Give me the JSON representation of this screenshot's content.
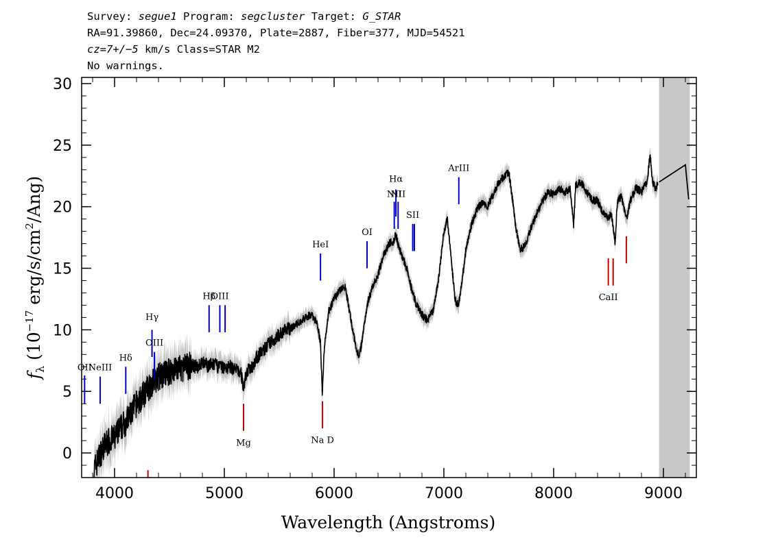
{
  "header": {
    "survey_label": "Survey:",
    "survey": "segue1",
    "program_label": "Program:",
    "program": "segcluster",
    "target_label": "Target:",
    "target": "G_STAR",
    "line2": "RA=91.39860, Dec=24.09370, Plate=2887, Fiber=377, MJD=54521",
    "cz_label": "cz=7+/−5",
    "cz_rest": " km/s Class=STAR M2",
    "line4": "No warnings."
  },
  "chart_data": {
    "type": "line",
    "xlabel": "Wavelength (Angstroms)",
    "ylabel_prefix": "f",
    "ylabel_sub": "λ",
    "ylabel_text": " (10",
    "ylabel_exp": "−17",
    "ylabel_tail": " erg/s/cm",
    "ylabel_exp2": "2",
    "ylabel_end": "/Ang)",
    "xlim": [
      3700,
      9300
    ],
    "ylim": [
      -2,
      30.5
    ],
    "xticks": [
      4000,
      5000,
      6000,
      7000,
      8000,
      9000
    ],
    "yticks": [
      0,
      5,
      10,
      15,
      20,
      25,
      30
    ],
    "masked_region": [
      8960,
      9240
    ],
    "colors": {
      "spectrum": "#000000",
      "error_band": "#c0c0c0",
      "emission": "#0000cc",
      "absorption": "#cc0000",
      "mask": "#c8c8c8"
    },
    "series": [
      {
        "x": [
          3810,
          3850,
          3900,
          3950,
          4000,
          4050,
          4100,
          4150,
          4200,
          4250,
          4300,
          4350,
          4400,
          4450,
          4500,
          4550,
          4600,
          4650,
          4700,
          4750,
          4800,
          4850,
          4900,
          4950,
          5000,
          5050,
          5100,
          5150,
          5175,
          5200,
          5250,
          5300,
          5350,
          5400,
          5450,
          5500,
          5550,
          5600,
          5650,
          5700,
          5750,
          5800,
          5850,
          5875,
          5893,
          5910,
          5950,
          6000,
          6050,
          6100,
          6150,
          6200,
          6230,
          6260,
          6300,
          6350,
          6400,
          6450,
          6500,
          6540,
          6563,
          6580,
          6620,
          6660,
          6700,
          6750,
          6800,
          6850,
          6900,
          6950,
          7000,
          7030,
          7050,
          7070,
          7100,
          7130,
          7160,
          7200,
          7250,
          7300,
          7350,
          7400,
          7450,
          7500,
          7550,
          7590,
          7620,
          7660,
          7700,
          7750,
          7800,
          7850,
          7900,
          7950,
          8000,
          8050,
          8100,
          8150,
          8183,
          8200,
          8250,
          8300,
          8350,
          8400,
          8450,
          8498,
          8520,
          8542,
          8560,
          8580,
          8620,
          8662,
          8700,
          8750,
          8800,
          8850,
          8880,
          8900,
          8930,
          8950
        ],
        "y": [
          -1.5,
          -0.5,
          0.5,
          1.0,
          1.2,
          2.0,
          2.5,
          3.2,
          4.0,
          4.5,
          5.2,
          5.8,
          6.2,
          6.4,
          6.6,
          6.9,
          6.8,
          7.0,
          7.1,
          7.0,
          7.3,
          7.1,
          7.2,
          7.0,
          6.9,
          7.0,
          6.8,
          6.5,
          5.3,
          6.5,
          7.0,
          7.8,
          8.3,
          8.8,
          9.2,
          9.6,
          10.0,
          10.1,
          10.4,
          10.7,
          11.1,
          11.2,
          10.4,
          9.0,
          4.7,
          8.5,
          11.5,
          12.5,
          13.2,
          13.5,
          11.0,
          8.5,
          7.8,
          9.5,
          12.0,
          13.5,
          14.5,
          16.0,
          17.0,
          17.2,
          17.8,
          17.0,
          16.0,
          15.0,
          13.5,
          12.0,
          11.2,
          10.8,
          11.5,
          14.0,
          18.0,
          19.0,
          17.5,
          15.5,
          12.5,
          12.0,
          13.5,
          16.5,
          18.5,
          19.8,
          20.3,
          20.0,
          21.0,
          22.0,
          22.5,
          22.8,
          21.0,
          18.0,
          16.5,
          17.0,
          18.5,
          19.5,
          20.5,
          21.2,
          21.0,
          21.5,
          21.2,
          21.4,
          18.5,
          21.7,
          22.0,
          21.2,
          20.5,
          20.5,
          19.5,
          19.0,
          19.5,
          18.5,
          17.0,
          20.5,
          20.8,
          19.0,
          20.5,
          21.5,
          21.2,
          22.0,
          24.2,
          22.0,
          21.5,
          21.8
        ]
      }
    ],
    "masked_line": {
      "x": [
        8960,
        9200,
        9230
      ],
      "y": [
        22.0,
        23.4,
        20.6
      ]
    },
    "emission_lines": [
      {
        "label": "OII",
        "x": 3727,
        "y0": 4.0,
        "y1": 6.3,
        "label_y": 6.7
      },
      {
        "label": "NeIII",
        "x": 3869,
        "y0": 4.0,
        "y1": 6.2,
        "label_y": 6.7
      },
      {
        "label": "Hδ",
        "x": 4102,
        "y0": 4.8,
        "y1": 7.0,
        "label_y": 7.5
      },
      {
        "label": "Hγ",
        "x": 4341,
        "y0": 7.8,
        "y1": 10.0,
        "label_y": 10.8
      },
      {
        "label": "OIII",
        "x": 4363,
        "y0": 6.0,
        "y1": 8.2,
        "label_y": 8.7
      },
      {
        "label": "Hβ",
        "x": 4861,
        "y0": 9.8,
        "y1": 12.0,
        "label_y": 12.5
      },
      {
        "label": "OIII",
        "x": 4959,
        "y0": 9.8,
        "y1": 12.0,
        "label_y": 12.5
      },
      {
        "label": "OIII",
        "x": 5007,
        "y0": 9.8,
        "y1": 12.0,
        "label_y": null
      },
      {
        "label": "HeI",
        "x": 5876,
        "y0": 14.0,
        "y1": 16.2,
        "label_y": 16.7
      },
      {
        "label": "OI",
        "x": 6300,
        "y0": 15.0,
        "y1": 17.2,
        "label_y": 17.7
      },
      {
        "label": "NII",
        "x": 6548,
        "y0": 18.2,
        "y1": 20.4,
        "label_y": 20.8
      },
      {
        "label": "Hα",
        "x": 6563,
        "y0": 19.2,
        "y1": 21.4,
        "label_y": 22.0
      },
      {
        "label": "NII",
        "x": 6583,
        "y0": 18.2,
        "y1": 20.4,
        "label_y": 20.8
      },
      {
        "label": "SII",
        "x": 6716,
        "y0": 16.4,
        "y1": 18.6,
        "label_y": 19.1
      },
      {
        "label": "SII",
        "x": 6731,
        "y0": 16.4,
        "y1": 18.6,
        "label_y": null
      },
      {
        "label": "ArIII",
        "x": 7136,
        "y0": 20.2,
        "y1": 22.4,
        "label_y": 22.9
      }
    ],
    "absorption_lines": [
      {
        "label": "",
        "x": 4304,
        "y0": -2.0,
        "y1": -1.4,
        "label_y": null
      },
      {
        "label": "Mg",
        "x": 5175,
        "y0": 1.8,
        "y1": 4.0,
        "label_y": 0.6
      },
      {
        "label": "Na D",
        "x": 5894,
        "y0": 2.0,
        "y1": 4.2,
        "label_y": 0.8
      },
      {
        "label": "CaII",
        "x": 8498,
        "y0": 13.6,
        "y1": 15.8,
        "label_y": 12.4
      },
      {
        "label": "CaII",
        "x": 8542,
        "y0": 13.6,
        "y1": 15.8,
        "label_y": null
      },
      {
        "label": "",
        "x": 8662,
        "y0": 15.4,
        "y1": 17.6,
        "label_y": null
      }
    ]
  }
}
